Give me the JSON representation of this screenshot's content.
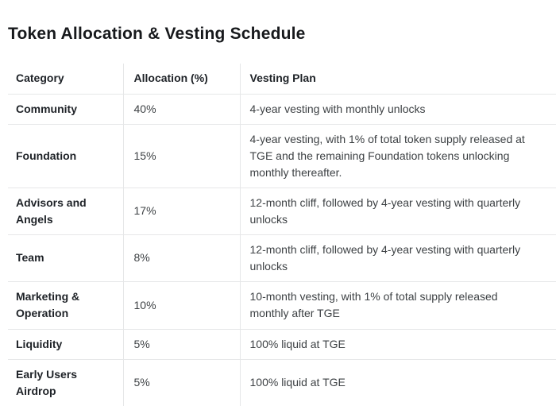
{
  "page": {
    "title": "Token Allocation & Vesting Schedule"
  },
  "table": {
    "columns": [
      "Category",
      "Allocation (%)",
      "Vesting Plan"
    ],
    "rows": [
      {
        "category": "Community",
        "allocation": "40%",
        "vesting": "4-year vesting with monthly unlocks"
      },
      {
        "category": "Foundation",
        "allocation": "15%",
        "vesting": "4-year vesting, with 1% of total token supply released at TGE and the remaining Foundation tokens unlocking monthly thereafter."
      },
      {
        "category": "Advisors and Angels",
        "allocation": "17%",
        "vesting": "12-month cliff, followed by 4-year vesting with quarterly unlocks"
      },
      {
        "category": "Team",
        "allocation": "8%",
        "vesting": "12-month cliff, followed by 4-year vesting with quarterly unlocks"
      },
      {
        "category": "Marketing & Operation",
        "allocation": "10%",
        "vesting": "10-month vesting, with 1% of total supply released monthly after TGE"
      },
      {
        "category": "Liquidity",
        "allocation": "5%",
        "vesting": "100% liquid at TGE"
      },
      {
        "category": "Early Users Airdrop",
        "allocation": "5%",
        "vesting": "100% liquid at TGE"
      }
    ]
  },
  "colors": {
    "background": "#ffffff",
    "text_heading": "#17191c",
    "text_bold": "#1e2227",
    "text_body": "#3d4144",
    "divider": "#e6e7e8"
  }
}
